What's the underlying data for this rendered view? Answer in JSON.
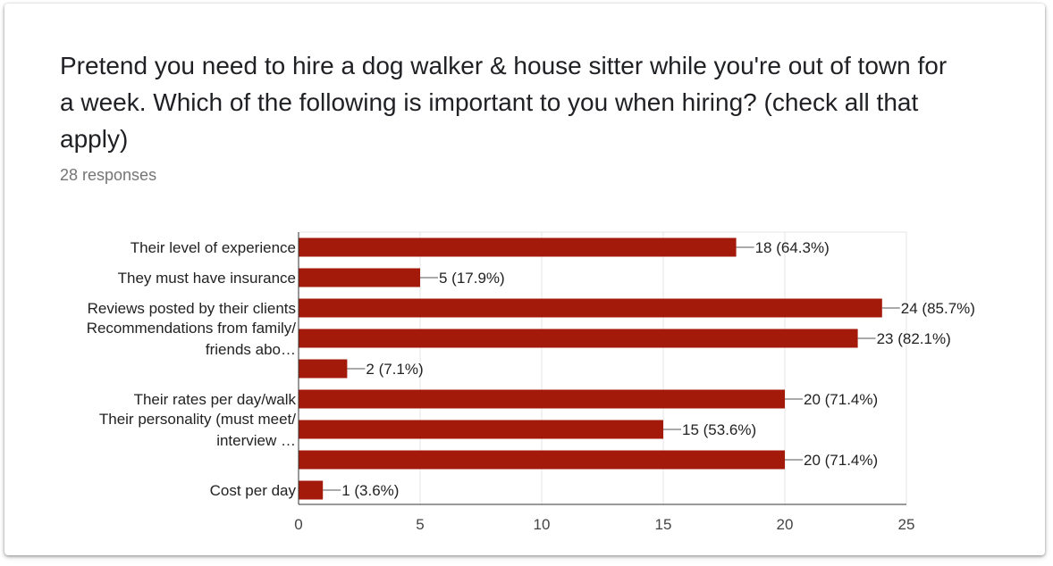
{
  "question": {
    "title": "Pretend you need to hire a dog walker & house sitter while you're out of town for a week. Which of the following is important to you when hiring? (check all that apply)",
    "responses": "28 responses"
  },
  "colors": {
    "bar": "#a31a0b",
    "grid": "#e6e6e6",
    "axis": "#333333"
  },
  "chart_data": {
    "type": "bar",
    "orientation": "horizontal",
    "categories": [
      [
        "Their level of experience"
      ],
      [
        "They must have insurance"
      ],
      [
        "Reviews posted by their clients"
      ],
      [
        "Recommendations from family/",
        "friends abo…"
      ],
      [],
      [
        "Their rates per day/walk"
      ],
      [
        "Their personality (must meet/",
        "interview …"
      ],
      [],
      [
        "Cost per day"
      ]
    ],
    "values": [
      18,
      5,
      24,
      23,
      2,
      20,
      15,
      20,
      1
    ],
    "value_labels": [
      "18 (64.3%)",
      "5 (17.9%)",
      "24 (85.7%)",
      "23 (82.1%)",
      "2 (7.1%)",
      "20 (71.4%)",
      "15 (53.6%)",
      "20 (71.4%)",
      "1 (3.6%)"
    ],
    "xlim": [
      0,
      25
    ],
    "xticks": [
      0,
      5,
      10,
      15,
      20,
      25
    ],
    "grid": true
  }
}
